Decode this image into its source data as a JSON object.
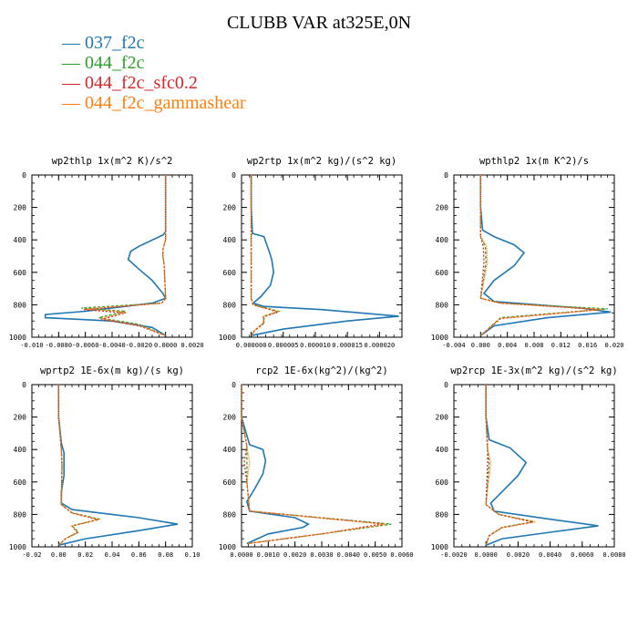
{
  "figure_title": "CLUBB VAR at325E,0N",
  "colors": {
    "037_f2c": "#1f77b4",
    "044_f2c": "#2ca02c",
    "044_f2c_sfc0.2": "#d62728",
    "044_f2c_gammashear": "#ff7f0e"
  },
  "chart_data": [
    {
      "type": "line",
      "title": "wp2thlp  1x(m^2 K)/s^2",
      "xlim": [
        -0.01,
        0.002
      ],
      "ylim": [
        0,
        1000
      ],
      "y_inverted": true,
      "xticks": [
        "-0.010",
        "-0.0080",
        "-0.0060",
        "-0.0040",
        "-0.0020",
        "0.0000",
        "0.0020"
      ],
      "xtick_values": [
        -0.01,
        -0.008,
        -0.006,
        -0.004,
        -0.002,
        0.0,
        0.002
      ],
      "yticks": [
        "0",
        "200",
        "400",
        "600",
        "800",
        "1000"
      ],
      "ytick_values": [
        0,
        200,
        400,
        600,
        800,
        1000
      ],
      "series": [
        {
          "name": "037_f2c",
          "x": [
            0,
            0,
            0,
            -0.0002,
            -0.002,
            -0.0026,
            -0.0028,
            -0.002,
            -0.001,
            -0.0002,
            0,
            -0.001,
            -0.006,
            -0.009,
            -0.009,
            -0.004,
            -0.001,
            0
          ],
          "y": [
            0,
            200,
            350,
            370,
            440,
            470,
            520,
            580,
            650,
            730,
            760,
            790,
            840,
            860,
            880,
            900,
            940,
            990
          ]
        },
        {
          "name": "044_f2c",
          "x": [
            0,
            0,
            0,
            -0.0002,
            -0.0002,
            -0.0001,
            0,
            -0.0003,
            -0.0063,
            -0.003,
            -0.005,
            -0.002,
            0
          ],
          "y": [
            0,
            200,
            400,
            460,
            500,
            560,
            760,
            790,
            820,
            840,
            880,
            920,
            990
          ]
        },
        {
          "name": "044_f2c_sfc0.2",
          "x": [
            0,
            0,
            0,
            -0.0002,
            -0.0002,
            -0.0001,
            0,
            -0.0003,
            -0.0061,
            -0.003,
            -0.0048,
            -0.002,
            0
          ],
          "y": [
            0,
            200,
            400,
            460,
            500,
            560,
            760,
            790,
            830,
            850,
            890,
            930,
            990
          ]
        },
        {
          "name": "044_f2c_gammashear",
          "x": [
            0,
            0,
            0,
            -0.0002,
            -0.0002,
            -0.0001,
            0,
            -0.0003,
            -0.006,
            -0.003,
            -0.0048,
            -0.002,
            0
          ],
          "y": [
            0,
            200,
            400,
            460,
            500,
            560,
            760,
            790,
            825,
            845,
            885,
            925,
            990
          ]
        }
      ]
    },
    {
      "type": "line",
      "title": "wp2rtp  1x(m^2 kg)/(s^2 kg)",
      "xlim": [
        -1.5e-06,
        2.35e-05
      ],
      "ylim": [
        0,
        1000
      ],
      "y_inverted": true,
      "xticks": [
        "0.000000",
        "0.000005",
        "0.000010",
        "0.000015",
        "0.000020"
      ],
      "xtick_values": [
        0,
        5e-06,
        1e-05,
        1.5e-05,
        2e-05
      ],
      "yticks": [
        "0",
        "200",
        "400",
        "600",
        "800",
        "1000"
      ],
      "ytick_values": [
        0,
        200,
        400,
        600,
        800,
        1000
      ],
      "series": [
        {
          "name": "037_f2c",
          "x": [
            0,
            0,
            2e-07,
            2e-06,
            2.8e-06,
            3.2e-06,
            3.5e-06,
            3e-06,
            1.5e-06,
            3e-07,
            2e-06,
            1.1e-05,
            2.3e-05,
            1.5e-05,
            5e-06,
            0
          ],
          "y": [
            0,
            200,
            360,
            380,
            470,
            520,
            600,
            680,
            750,
            790,
            810,
            830,
            870,
            900,
            950,
            990
          ]
        },
        {
          "name": "044_f2c",
          "x": [
            0,
            0,
            0,
            0,
            3e-07,
            4.3e-06,
            2e-06,
            2e-06,
            5e-07,
            0
          ],
          "y": [
            0,
            200,
            400,
            760,
            800,
            840,
            870,
            910,
            960,
            990
          ]
        },
        {
          "name": "044_f2c_sfc0.2",
          "x": [
            0,
            0,
            0,
            0,
            3e-07,
            4.2e-06,
            1.9e-06,
            2e-06,
            5e-07,
            0
          ],
          "y": [
            0,
            200,
            400,
            760,
            800,
            845,
            875,
            915,
            960,
            990
          ]
        },
        {
          "name": "044_f2c_gammashear",
          "x": [
            0,
            0,
            0,
            0,
            3e-07,
            4.1e-06,
            1.9e-06,
            1.9e-06,
            5e-07,
            0
          ],
          "y": [
            0,
            200,
            400,
            760,
            800,
            842,
            872,
            912,
            960,
            990
          ]
        }
      ]
    },
    {
      "type": "line",
      "title": "wpthlp2  1x(m K^2)/s",
      "xlim": [
        -0.004,
        0.02
      ],
      "ylim": [
        0,
        1000
      ],
      "y_inverted": true,
      "xticks": [
        "-0.004",
        "0.000",
        "0.004",
        "0.008",
        "0.012",
        "0.016",
        "0.020"
      ],
      "xtick_values": [
        -0.004,
        0,
        0.004,
        0.008,
        0.012,
        0.016,
        0.02
      ],
      "yticks": [
        "0",
        "200",
        "400",
        "600",
        "800",
        "1000"
      ],
      "ytick_values": [
        0,
        200,
        400,
        600,
        800,
        1000
      ],
      "series": [
        {
          "name": "037_f2c",
          "x": [
            0,
            0,
            0.0003,
            0.002,
            0.005,
            0.0065,
            0.005,
            0.002,
            0.0005,
            0.002,
            0.015,
            0.0195,
            0.01,
            0.002,
            0
          ],
          "y": [
            0,
            200,
            340,
            380,
            430,
            480,
            560,
            650,
            730,
            780,
            820,
            845,
            880,
            930,
            990
          ]
        },
        {
          "name": "044_f2c",
          "x": [
            0,
            0,
            0,
            0.0007,
            0.0008,
            0,
            0.003,
            0.019,
            0.003,
            0
          ],
          "y": [
            0,
            200,
            380,
            440,
            540,
            760,
            790,
            825,
            880,
            990
          ]
        },
        {
          "name": "044_f2c_sfc0.2",
          "x": [
            0,
            0,
            0,
            0.0004,
            0.0005,
            0,
            0.003,
            0.0178,
            0.003,
            0
          ],
          "y": [
            0,
            200,
            380,
            440,
            540,
            760,
            790,
            830,
            885,
            990
          ]
        },
        {
          "name": "044_f2c_gammashear",
          "x": [
            0,
            0,
            0,
            0.0009,
            0.001,
            0,
            0.003,
            0.0182,
            0.003,
            0
          ],
          "y": [
            0,
            200,
            380,
            440,
            540,
            760,
            790,
            828,
            883,
            990
          ]
        }
      ]
    },
    {
      "type": "line",
      "title": "wprtp2  1E-6x(m kg)/(s kg)",
      "xlim": [
        -0.02,
        0.1
      ],
      "ylim": [
        0,
        1000
      ],
      "y_inverted": true,
      "xticks": [
        "-0.02",
        "0.00",
        "0.02",
        "0.04",
        "0.06",
        "0.08",
        "0.10"
      ],
      "xtick_values": [
        -0.02,
        0,
        0.02,
        0.04,
        0.06,
        0.08,
        0.1
      ],
      "yticks": [
        "0",
        "200",
        "400",
        "600",
        "800",
        "1000"
      ],
      "ytick_values": [
        0,
        200,
        400,
        600,
        800,
        1000
      ],
      "series": [
        {
          "name": "037_f2c",
          "x": [
            0,
            0,
            0.002,
            0.004,
            0.004,
            0.002,
            0.002,
            0.01,
            0.06,
            0.089,
            0.06,
            0.02,
            0
          ],
          "y": [
            0,
            200,
            360,
            420,
            560,
            660,
            730,
            770,
            820,
            860,
            900,
            950,
            990
          ]
        },
        {
          "name": "044_f2c",
          "x": [
            0,
            0,
            0.002,
            0.0025,
            0.002,
            0.01,
            0.031,
            0.01,
            0.015,
            0.005,
            0
          ],
          "y": [
            0,
            200,
            400,
            500,
            740,
            790,
            830,
            870,
            910,
            950,
            990
          ]
        },
        {
          "name": "044_f2c_sfc0.2",
          "x": [
            0,
            0,
            0.002,
            0.0025,
            0.002,
            0.01,
            0.029,
            0.01,
            0.014,
            0.005,
            0
          ],
          "y": [
            0,
            200,
            400,
            500,
            740,
            792,
            832,
            872,
            912,
            950,
            990
          ]
        },
        {
          "name": "044_f2c_gammashear",
          "x": [
            0,
            0,
            0.002,
            0.0025,
            0.002,
            0.01,
            0.03,
            0.01,
            0.014,
            0.005,
            0
          ],
          "y": [
            0,
            200,
            400,
            500,
            740,
            791,
            831,
            871,
            911,
            950,
            990
          ]
        }
      ]
    },
    {
      "type": "line",
      "title": "rcp2  1E-6x(kg^2)/(kg^2)",
      "xlim": [
        0,
        0.006
      ],
      "ylim": [
        0,
        1000
      ],
      "y_inverted": true,
      "xticks": [
        "0.0000",
        "0.0010",
        "0.0020",
        "0.0030",
        "0.0040",
        "0.0050",
        "0.0060"
      ],
      "xtick_values": [
        0,
        0.001,
        0.002,
        0.003,
        0.004,
        0.005,
        0.006
      ],
      "yticks": [
        "0",
        "200",
        "400",
        "600",
        "800",
        "1000"
      ],
      "ytick_values": [
        0,
        200,
        400,
        600,
        800,
        1000
      ],
      "series": [
        {
          "name": "037_f2c",
          "x": [
            0,
            0,
            0.0003,
            0.0008,
            0.0009,
            0.0008,
            0.0005,
            0.0002,
            0.0003,
            0.002,
            0.0025,
            0.0023,
            0.001,
            0.0002
          ],
          "y": [
            0,
            200,
            370,
            400,
            470,
            550,
            640,
            720,
            780,
            820,
            860,
            880,
            920,
            980
          ]
        },
        {
          "name": "044_f2c",
          "x": [
            0,
            0,
            0.0002,
            0.0002,
            0.0002,
            0.0003,
            0.0056,
            0.003,
            0.0002
          ],
          "y": [
            0,
            200,
            380,
            480,
            600,
            780,
            860,
            920,
            980
          ]
        },
        {
          "name": "044_f2c_sfc0.2",
          "x": [
            0,
            0,
            0.0002,
            0.0001,
            0.0002,
            0.0003,
            0.0053,
            0.003,
            0.0002
          ],
          "y": [
            0,
            200,
            380,
            480,
            600,
            780,
            858,
            920,
            980
          ]
        },
        {
          "name": "044_f2c_gammashear",
          "x": [
            0,
            0,
            0.0002,
            0.0003,
            0.0002,
            0.0003,
            0.0054,
            0.003,
            0.0002
          ],
          "y": [
            0,
            200,
            380,
            480,
            600,
            780,
            862,
            920,
            980
          ]
        }
      ]
    },
    {
      "type": "line",
      "title": "wp2rcp  1E-3x(m^2 kg)/(s^2 kg)",
      "xlim": [
        -0.002,
        0.008
      ],
      "ylim": [
        0,
        1000
      ],
      "y_inverted": true,
      "xticks": [
        "-0.0020",
        "0.0000",
        "0.0020",
        "0.0040",
        "0.0060",
        "0.0080"
      ],
      "xtick_values": [
        -0.002,
        0,
        0.002,
        0.004,
        0.006,
        0.008
      ],
      "yticks": [
        "0",
        "200",
        "400",
        "600",
        "800",
        "1000"
      ],
      "ytick_values": [
        0,
        200,
        400,
        600,
        800,
        1000
      ],
      "series": [
        {
          "name": "037_f2c",
          "x": [
            0,
            0,
            0.0002,
            0.0015,
            0.0025,
            0.002,
            0.001,
            0.0003,
            0.0005,
            0.004,
            0.007,
            0.004,
            0.001,
            0
          ],
          "y": [
            0,
            200,
            340,
            390,
            480,
            560,
            660,
            730,
            780,
            830,
            870,
            910,
            950,
            990
          ]
        },
        {
          "name": "044_f2c",
          "x": [
            0,
            0,
            0.0001,
            0.0002,
            0,
            0.0008,
            0.003,
            0.001,
            0.0002,
            0
          ],
          "y": [
            0,
            200,
            400,
            480,
            740,
            800,
            845,
            880,
            930,
            990
          ]
        },
        {
          "name": "044_f2c_sfc0.2",
          "x": [
            0,
            0,
            0.0001,
            0.0001,
            0,
            0.0008,
            0.0029,
            0.001,
            0.0002,
            0
          ],
          "y": [
            0,
            200,
            400,
            480,
            740,
            800,
            848,
            882,
            932,
            990
          ]
        },
        {
          "name": "044_f2c_gammashear",
          "x": [
            0,
            0,
            0.0001,
            0.0003,
            0,
            0.0008,
            0.0031,
            0.001,
            0.0002,
            0
          ],
          "y": [
            0,
            200,
            400,
            480,
            740,
            800,
            846,
            881,
            931,
            990
          ]
        }
      ]
    }
  ]
}
